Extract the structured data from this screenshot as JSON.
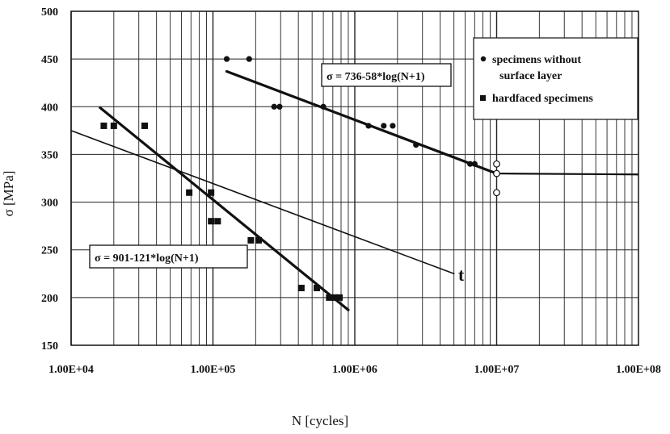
{
  "chart_data": {
    "type": "scatter",
    "x_scale": "log",
    "xlabel": "N [cycles]",
    "ylabel": "σ [MPa]",
    "xlim": [
      10000,
      100000000
    ],
    "ylim": [
      150,
      500
    ],
    "x_tick_labels": [
      "1.00E+04",
      "1.00E+05",
      "1.00E+06",
      "1.00E+07",
      "1.00E+08"
    ],
    "x_tick_values": [
      10000,
      100000,
      1000000,
      10000000,
      100000000
    ],
    "y_ticks": [
      150,
      200,
      250,
      300,
      350,
      400,
      450,
      500
    ],
    "grid": true,
    "legend_position": "top-right",
    "series": [
      {
        "name": "specimens without surface layer",
        "legend_lines": [
          "specimens without",
          "surface layer"
        ],
        "marker": "circle",
        "points": [
          [
            125000,
            450
          ],
          [
            180000,
            450
          ],
          [
            270000,
            400
          ],
          [
            295000,
            400
          ],
          [
            600000,
            400
          ],
          [
            1250000,
            380
          ],
          [
            1600000,
            380
          ],
          [
            1850000,
            380
          ],
          [
            2700000,
            360
          ],
          [
            6500000,
            340
          ],
          [
            7000000,
            340
          ]
        ],
        "runouts": [
          [
            10000000,
            340
          ],
          [
            10000000,
            330
          ],
          [
            10000000,
            310
          ]
        ]
      },
      {
        "name": "hardfaced specimens",
        "legend_lines": [
          "hardfaced specimens"
        ],
        "marker": "square",
        "points": [
          [
            17000,
            380
          ],
          [
            20000,
            380
          ],
          [
            33000,
            380
          ],
          [
            68000,
            310
          ],
          [
            97000,
            310
          ],
          [
            97000,
            280
          ],
          [
            108000,
            280
          ],
          [
            185000,
            260
          ],
          [
            210000,
            260
          ],
          [
            420000,
            210
          ],
          [
            540000,
            210
          ],
          [
            660000,
            200
          ],
          [
            720000,
            200
          ],
          [
            780000,
            200
          ]
        ]
      }
    ],
    "fit_lines": [
      {
        "label": "σ = 736-58*log(N+1)",
        "points": [
          [
            125000,
            437
          ],
          [
            10000000,
            330
          ]
        ],
        "runout_line": [
          [
            10000000,
            330
          ],
          [
            100000000,
            329
          ]
        ]
      },
      {
        "label": "σ = 901-121*log(N+1)",
        "points": [
          [
            16000,
            399
          ],
          [
            900000,
            187
          ]
        ]
      },
      {
        "label": "t",
        "points": [
          [
            10000,
            375
          ],
          [
            5000000,
            225
          ]
        ]
      }
    ],
    "equation_labels": [
      "σ = 736-58*log(N+1)",
      "σ  = 901-121*log(N+1)"
    ],
    "annotation": "t"
  },
  "colors": {
    "ink": "#111111",
    "grid": "#222222",
    "background": "#ffffff"
  }
}
